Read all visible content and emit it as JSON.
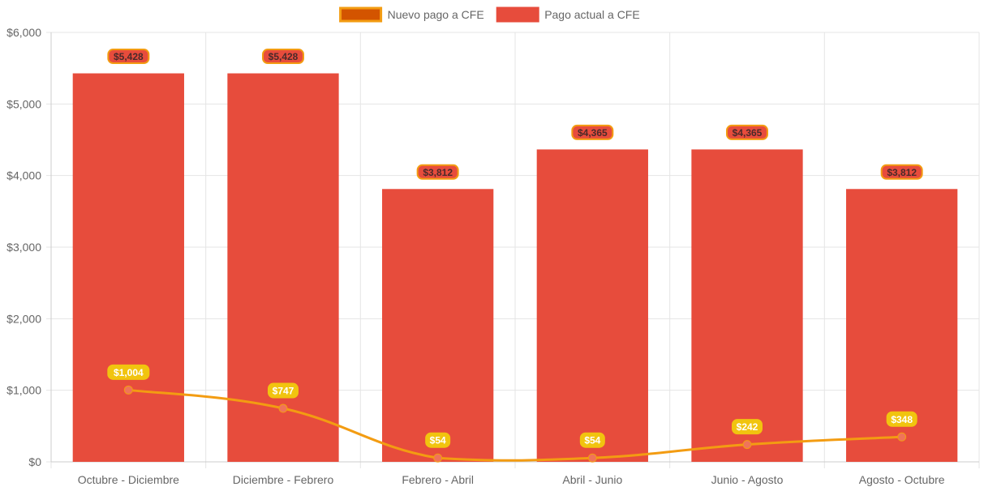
{
  "chart_data": {
    "type": "bar",
    "categories": [
      "Octubre - Diciembre",
      "Diciembre - Febrero",
      "Febrero - Abril",
      "Abril - Junio",
      "Junio - Agosto",
      "Agosto - Octubre"
    ],
    "series": [
      {
        "name": "Nuevo pago a CFE",
        "type": "line",
        "values": [
          1004,
          747,
          54,
          54,
          242,
          348
        ],
        "labels": [
          "$1,004",
          "$747",
          "$54",
          "$54",
          "$242",
          "$348"
        ],
        "color": "#f39c12",
        "label_bg": "#f1c40f"
      },
      {
        "name": "Pago actual a CFE",
        "type": "bar",
        "values": [
          5428,
          5428,
          3812,
          4365,
          4365,
          3812
        ],
        "labels": [
          "$5,428",
          "$5,428",
          "$3,812",
          "$4,365",
          "$4,365",
          "$3,812"
        ],
        "color": "#e74c3c",
        "label_border": "#f39c12"
      }
    ],
    "legend": {
      "position": "top",
      "items": [
        {
          "label": "Nuevo pago a CFE",
          "color": "#d35400",
          "border": "#f39c12"
        },
        {
          "label": "Pago actual a CFE",
          "color": "#e74c3c",
          "border": "#e74c3c"
        }
      ]
    },
    "yticks": [
      "$0",
      "$1,000",
      "$2,000",
      "$3,000",
      "$4,000",
      "$5,000",
      "$6,000"
    ],
    "ytick_values": [
      0,
      1000,
      2000,
      3000,
      4000,
      5000,
      6000
    ],
    "ylim": [
      0,
      6000
    ],
    "grid": true,
    "title": "",
    "xlabel": "",
    "ylabel": ""
  }
}
